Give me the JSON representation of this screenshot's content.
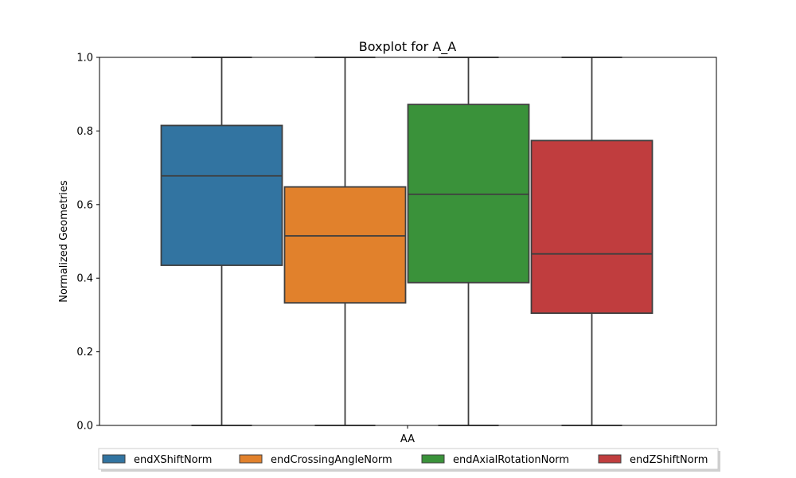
{
  "chart_data": {
    "type": "boxplot",
    "title": "Boxplot for A_A",
    "xlabel": "AA",
    "ylabel": "Normalized Geometries",
    "ylim": [
      0.0,
      1.0
    ],
    "yticks": [
      "0.0",
      "0.2",
      "0.4",
      "0.6",
      "0.8",
      "1.0"
    ],
    "categories": [
      "AA"
    ],
    "grid": false,
    "legend_position": "bottom-center",
    "series": [
      {
        "name": "endXShiftNorm",
        "color": "#3274a1",
        "whisker_low": 0.0,
        "q1": 0.435,
        "median": 0.678,
        "q3": 0.815,
        "whisker_high": 1.0
      },
      {
        "name": "endCrossingAngleNorm",
        "color": "#e1812c",
        "whisker_low": 0.0,
        "q1": 0.333,
        "median": 0.515,
        "q3": 0.648,
        "whisker_high": 1.0
      },
      {
        "name": "endAxialRotationNorm",
        "color": "#3a923a",
        "whisker_low": 0.0,
        "q1": 0.388,
        "median": 0.628,
        "q3": 0.872,
        "whisker_high": 1.0
      },
      {
        "name": "endZShiftNorm",
        "color": "#c03d3e",
        "whisker_low": 0.0,
        "q1": 0.305,
        "median": 0.466,
        "q3": 0.774,
        "whisker_high": 1.0
      }
    ]
  }
}
